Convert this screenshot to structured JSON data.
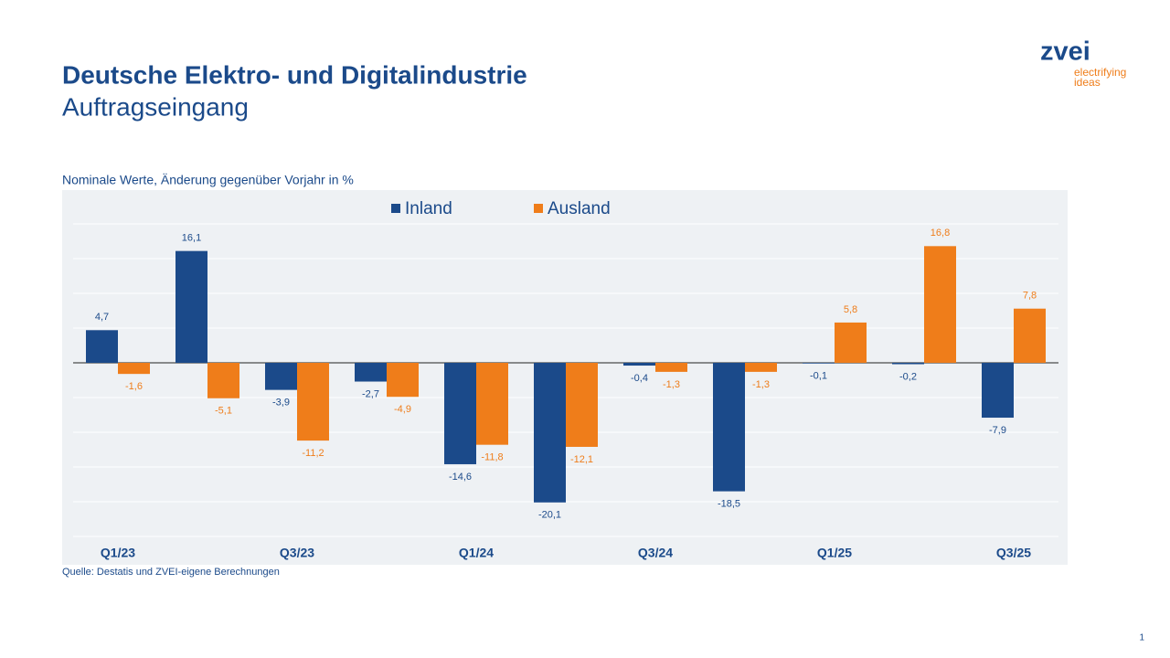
{
  "header": {
    "title": "Deutsche Elektro- und Digitalindustrie",
    "subtitle": "Auftragseingang"
  },
  "logo": {
    "name": "zvei",
    "tagline_1": "electrifying",
    "tagline_2": "ideas"
  },
  "page_number": "1",
  "chart_data": {
    "type": "bar",
    "subtitle": "Nominale Werte, Änderung gegenüber Vorjahr in %",
    "source": "Quelle: Destatis und ZVEI-eigene Berechnungen",
    "categories": [
      "Q1/23",
      null,
      "Q3/23",
      null,
      "Q1/24",
      null,
      "Q3/24",
      null,
      "Q1/25",
      null,
      "Q3/25"
    ],
    "series": [
      {
        "name": "Inland",
        "color": "#1b4a8a",
        "values": [
          4.7,
          16.1,
          -3.9,
          -2.7,
          -14.6,
          -20.1,
          -0.4,
          -18.5,
          -0.1,
          -0.2,
          -7.9
        ],
        "value_labels": [
          "4,7",
          "16,1",
          "-3,9",
          "-2,7",
          "-14,6",
          "-20,1",
          "-0,4",
          "-18,5",
          "-0,1",
          "-0,2",
          "-7,9"
        ]
      },
      {
        "name": "Ausland",
        "color": "#ef7d1a",
        "values": [
          -1.6,
          -5.1,
          -11.2,
          -4.9,
          -11.8,
          -12.1,
          -1.3,
          -1.3,
          5.8,
          16.8,
          7.8
        ],
        "value_labels": [
          "-1,6",
          "-5,1",
          "-11,2",
          "-4,9",
          "-11,8",
          "-12,1",
          "-1,3",
          "-1,3",
          "5,8",
          "16,8",
          "7,8"
        ]
      }
    ],
    "ylim": [
      -25,
      20
    ],
    "yticks": [
      -25,
      -20,
      -15,
      -10,
      -5,
      0,
      5,
      10,
      15,
      20
    ],
    "grid": true,
    "legend": "top"
  }
}
